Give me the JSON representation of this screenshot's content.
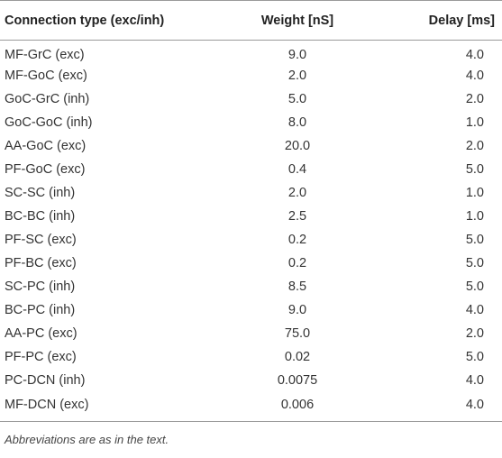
{
  "table": {
    "headers": {
      "connection_type": "Connection type (exc/inh)",
      "weight": "Weight [nS]",
      "delay": "Delay [ms]"
    },
    "rows": [
      {
        "connection": "MF-GrC (exc)",
        "weight": "9.0",
        "delay": "4.0"
      },
      {
        "connection": "MF-GoC (exc)",
        "weight": "2.0",
        "delay": "4.0"
      },
      {
        "connection": "GoC-GrC (inh)",
        "weight": "5.0",
        "delay": "2.0"
      },
      {
        "connection": "GoC-GoC (inh)",
        "weight": "8.0",
        "delay": "1.0"
      },
      {
        "connection": "AA-GoC (exc)",
        "weight": "20.0",
        "delay": "2.0"
      },
      {
        "connection": "PF-GoC (exc)",
        "weight": "0.4",
        "delay": "5.0"
      },
      {
        "connection": "SC-SC (inh)",
        "weight": "2.0",
        "delay": "1.0"
      },
      {
        "connection": "BC-BC (inh)",
        "weight": "2.5",
        "delay": "1.0"
      },
      {
        "connection": "PF-SC (exc)",
        "weight": "0.2",
        "delay": "5.0"
      },
      {
        "connection": "PF-BC (exc)",
        "weight": "0.2",
        "delay": "5.0"
      },
      {
        "connection": "SC-PC (inh)",
        "weight": "8.5",
        "delay": "5.0"
      },
      {
        "connection": "BC-PC (inh)",
        "weight": "9.0",
        "delay": "4.0"
      },
      {
        "connection": "AA-PC (exc)",
        "weight": "75.0",
        "delay": "2.0"
      },
      {
        "connection": "PF-PC (exc)",
        "weight": "0.02",
        "delay": "5.0"
      },
      {
        "connection": "PC-DCN (inh)",
        "weight": "0.0075",
        "delay": "4.0"
      },
      {
        "connection": "MF-DCN (exc)",
        "weight": "0.006",
        "delay": "4.0"
      }
    ]
  },
  "footnote": "Abbreviations are as in the text."
}
